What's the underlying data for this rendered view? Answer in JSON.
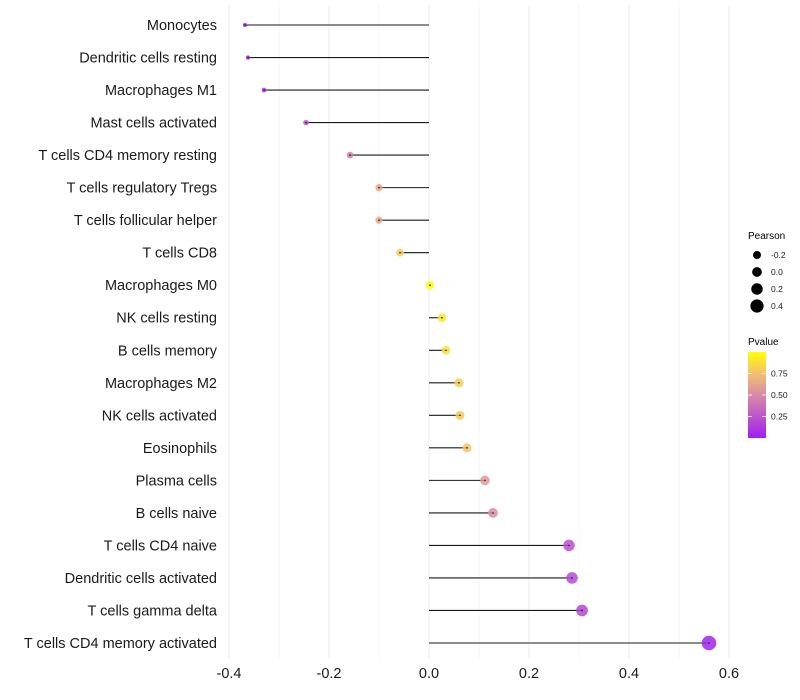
{
  "chart_data": {
    "type": "lollipop",
    "title": "",
    "xlabel": "",
    "ylabel": "",
    "xlim": [
      -0.4,
      0.6
    ],
    "x_ticks": [
      -0.4,
      -0.2,
      0.0,
      0.2,
      0.4,
      0.6
    ],
    "x_tick_labels": [
      "-0.4",
      "-0.2",
      "0.0",
      "0.2",
      "0.4",
      "0.6"
    ],
    "grid": true,
    "categories": [
      "Monocytes",
      "Dendritic cells resting",
      "Macrophages M1",
      "Mast cells activated",
      "T cells CD4 memory resting",
      "T cells regulatory  Tregs ",
      "T cells follicular helper",
      "T cells CD8",
      "Macrophages M0",
      "NK cells resting",
      "B cells memory",
      "Macrophages M2",
      "NK cells activated",
      "Eosinophils",
      "Plasma cells",
      "B cells naive",
      "T cells CD4 naive",
      "Dendritic cells activated",
      "T cells gamma delta",
      "T cells CD4 memory activated"
    ],
    "pearson": [
      -0.368,
      -0.362,
      -0.33,
      -0.246,
      -0.158,
      -0.1,
      -0.1,
      -0.058,
      0.002,
      0.026,
      0.034,
      0.06,
      0.062,
      0.076,
      0.112,
      0.128,
      0.28,
      0.286,
      0.306,
      0.56
    ],
    "pvalue": [
      0.05,
      0.05,
      0.08,
      0.27,
      0.45,
      0.63,
      0.63,
      0.8,
      0.99,
      0.9,
      0.88,
      0.8,
      0.79,
      0.76,
      0.57,
      0.52,
      0.22,
      0.2,
      0.18,
      0.02
    ],
    "legend": {
      "placement": "right",
      "size": {
        "title": "Pearson",
        "breaks": [
          -0.2,
          0.0,
          0.2,
          0.4
        ],
        "labels": [
          "-0.2",
          "0.0",
          "0.2",
          "0.4"
        ]
      },
      "color": {
        "title": "Pvalue",
        "breaks": [
          0.25,
          0.5,
          0.75
        ],
        "labels": [
          "0.25",
          "0.50",
          "0.75"
        ],
        "low_color": "#a020f0",
        "high_color": "#ffff00",
        "range": [
          0.0,
          1.0
        ]
      }
    }
  }
}
